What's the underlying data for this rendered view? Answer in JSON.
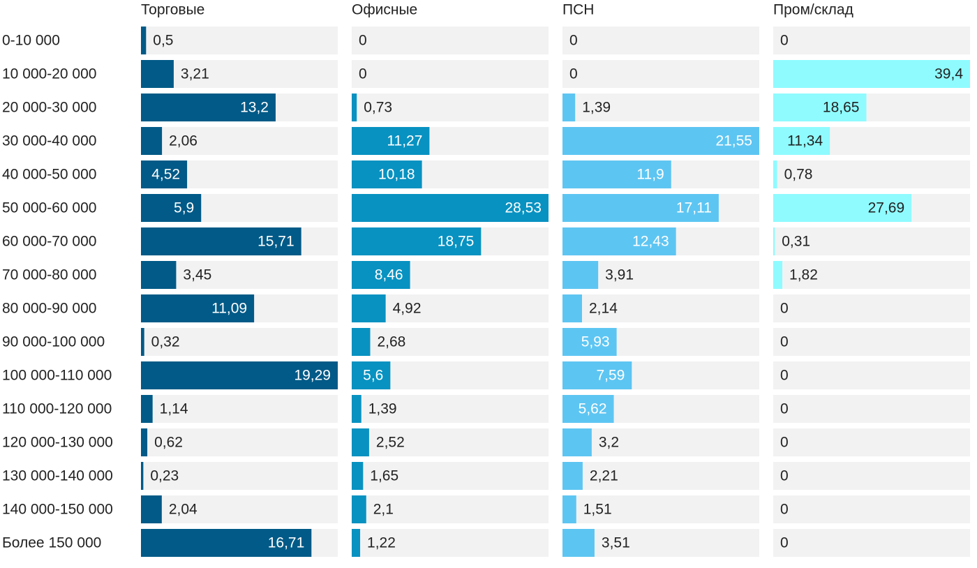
{
  "chart_data": {
    "type": "bar-panels",
    "categories": [
      "0-10 000",
      "10 000-20 000",
      "20 000-30 000",
      "30 000-40 000",
      "40 000-50 000",
      "50 000-60 000",
      "60 000-70 000",
      "70 000-80 000",
      "80 000-90 000",
      "90 000-100 000",
      "100 000-110 000",
      "110 000-120 000",
      "120 000-130 000",
      "130 000-140 000",
      "140 000-150 000",
      "Более 150 000"
    ],
    "series": [
      {
        "name": "Торговые",
        "color": "#015a87",
        "xlim": [
          0,
          19.29
        ],
        "values": [
          0.5,
          3.21,
          13.2,
          2.06,
          4.52,
          5.9,
          15.71,
          3.45,
          11.09,
          0.32,
          19.29,
          1.14,
          0.62,
          0.23,
          2.04,
          16.71
        ],
        "value_labels": [
          "0,5",
          "3,21",
          "13,2",
          "2,06",
          "4,52",
          "5,9",
          "15,71",
          "3,45",
          "11,09",
          "0,32",
          "19,29",
          "1,14",
          "0,62",
          "0,23",
          "2,04",
          "16,71"
        ]
      },
      {
        "name": "Офисные",
        "color": "#0892c1",
        "xlim": [
          0,
          28.53
        ],
        "values": [
          0,
          0,
          0.73,
          11.27,
          10.18,
          28.53,
          18.75,
          8.46,
          4.92,
          2.68,
          5.6,
          1.39,
          2.52,
          1.65,
          2.1,
          1.22
        ],
        "value_labels": [
          "0",
          "0",
          "0,73",
          "11,27",
          "10,18",
          "28,53",
          "18,75",
          "8,46",
          "4,92",
          "2,68",
          "5,6",
          "1,39",
          "2,52",
          "1,65",
          "2,1",
          "1,22"
        ]
      },
      {
        "name": "ПСН",
        "color": "#5dc5f2",
        "xlim": [
          0,
          21.55
        ],
        "values": [
          0,
          0,
          1.39,
          21.55,
          11.9,
          17.11,
          12.43,
          3.91,
          2.14,
          5.93,
          7.59,
          5.62,
          3.2,
          2.21,
          1.51,
          3.51
        ],
        "value_labels": [
          "0",
          "0",
          "1,39",
          "21,55",
          "11,9",
          "17,11",
          "12,43",
          "3,91",
          "2,14",
          "5,93",
          "7,59",
          "5,62",
          "3,2",
          "2,21",
          "1,51",
          "3,51"
        ]
      },
      {
        "name": "Пром/склад",
        "color": "#8ffbff",
        "xlim": [
          0,
          39.4
        ],
        "values": [
          0,
          39.4,
          18.65,
          11.34,
          0.78,
          27.69,
          0.31,
          1.82,
          0,
          0,
          0,
          0,
          0,
          0,
          0,
          0
        ],
        "value_labels": [
          "0",
          "39,4",
          "18,65",
          "11,34",
          "0,78",
          "27,69",
          "0,31",
          "1,82",
          "0",
          "0",
          "0",
          "0",
          "0",
          "0",
          "0",
          "0"
        ]
      }
    ]
  }
}
